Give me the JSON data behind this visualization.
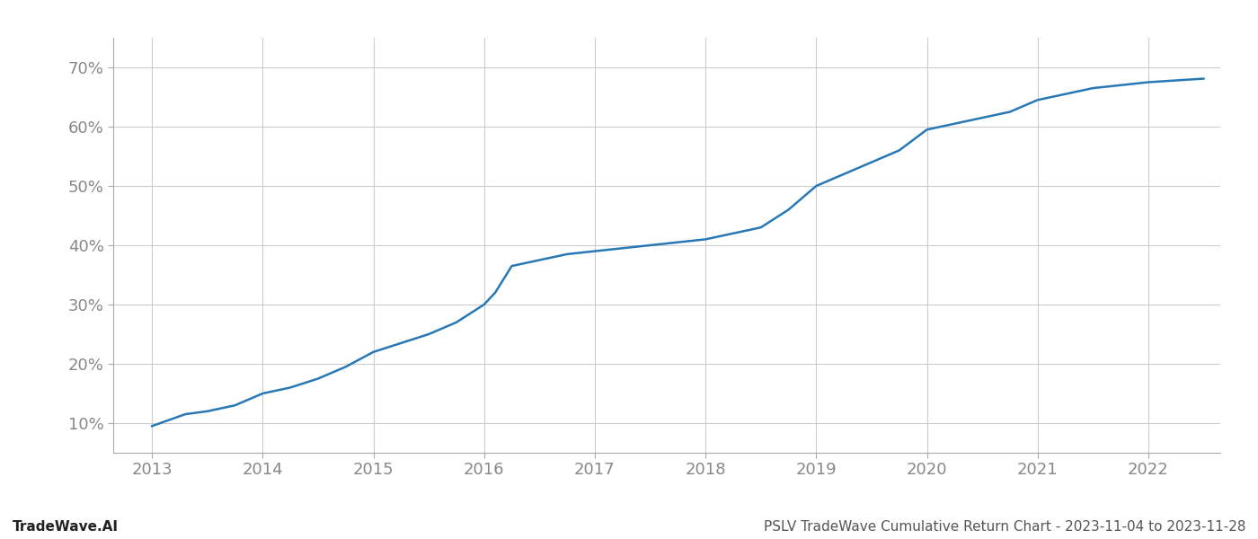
{
  "x_values": [
    2013.0,
    2013.15,
    2013.3,
    2013.5,
    2013.75,
    2014.0,
    2014.25,
    2014.5,
    2014.75,
    2015.0,
    2015.25,
    2015.5,
    2015.75,
    2016.0,
    2016.1,
    2016.25,
    2016.5,
    2016.75,
    2017.0,
    2017.25,
    2017.5,
    2017.75,
    2018.0,
    2018.25,
    2018.5,
    2018.75,
    2019.0,
    2019.25,
    2019.5,
    2019.75,
    2020.0,
    2020.25,
    2020.5,
    2020.75,
    2021.0,
    2021.25,
    2021.5,
    2021.75,
    2022.0,
    2022.25,
    2022.5
  ],
  "y_values": [
    9.5,
    10.5,
    11.5,
    12.0,
    13.0,
    15.0,
    16.0,
    17.5,
    19.5,
    22.0,
    23.5,
    25.0,
    27.0,
    30.0,
    32.0,
    36.5,
    37.5,
    38.5,
    39.0,
    39.5,
    40.0,
    40.5,
    41.0,
    42.0,
    43.0,
    46.0,
    50.0,
    52.0,
    54.0,
    56.0,
    59.5,
    60.5,
    61.5,
    62.5,
    64.5,
    65.5,
    66.5,
    67.0,
    67.5,
    67.8,
    68.1
  ],
  "line_color": "#2878b5",
  "background_color": "#ffffff",
  "grid_color": "#cccccc",
  "yticks": [
    10,
    20,
    30,
    40,
    50,
    60,
    70
  ],
  "xticks": [
    2013,
    2014,
    2015,
    2016,
    2017,
    2018,
    2019,
    2020,
    2021,
    2022
  ],
  "xlim": [
    2012.65,
    2022.65
  ],
  "ylim": [
    5,
    75
  ],
  "line_width": 1.8,
  "footer_left": "TradeWave.AI",
  "footer_right": "PSLV TradeWave Cumulative Return Chart - 2023-11-04 to 2023-11-28",
  "footer_color": "#555555",
  "footer_fontsize": 11,
  "tick_label_color": "#888888",
  "tick_fontsize": 13,
  "spine_color": "#aaaaaa"
}
